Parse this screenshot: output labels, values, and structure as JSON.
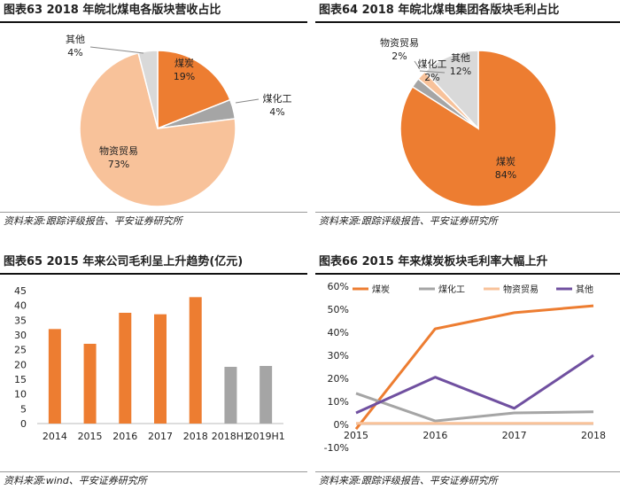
{
  "chart_data": [
    {
      "id": "fig63",
      "type": "pie",
      "title": "图表63   2018 年皖北煤电各版块营收占比",
      "source": "资料来源:跟踪评级报告、平安证券研究所",
      "labels": [
        "煤炭",
        "煤化工",
        "物资贸易",
        "其他"
      ],
      "values": [
        19,
        4,
        73,
        4
      ],
      "value_labels": [
        "19%",
        "4%",
        "73%",
        "4%"
      ],
      "colors": [
        "#ED7D31",
        "#A5A5A5",
        "#F8C29A",
        "#D9D9D9"
      ]
    },
    {
      "id": "fig64",
      "type": "pie",
      "title": "图表64   2018 年皖北煤电集团各版块毛利占比",
      "source": "资料来源:跟踪评级报告、平安证券研究所",
      "labels": [
        "煤炭",
        "煤化工",
        "物资贸易",
        "其他"
      ],
      "values": [
        84,
        2,
        2,
        12
      ],
      "value_labels": [
        "84%",
        "2%",
        "2%",
        "12%"
      ],
      "colors": [
        "#ED7D31",
        "#A5A5A5",
        "#F8C29A",
        "#D9D9D9"
      ]
    },
    {
      "id": "fig65",
      "type": "bar",
      "title": "图表65   2015 年来公司毛利呈上升趋势(亿元)",
      "source": "资料来源:wind、平安证券研究所",
      "categories": [
        "2014",
        "2015",
        "2016",
        "2017",
        "2018",
        "2018H1",
        "2019H1"
      ],
      "values": [
        32,
        27,
        37.5,
        37,
        42.8,
        19.2,
        19.5
      ],
      "colors": [
        "#ED7D31",
        "#ED7D31",
        "#ED7D31",
        "#ED7D31",
        "#ED7D31",
        "#A5A5A5",
        "#A5A5A5"
      ],
      "ylim": [
        0,
        45
      ],
      "yticks": [
        "0",
        "5",
        "10",
        "15",
        "20",
        "25",
        "30",
        "35",
        "40",
        "45"
      ],
      "ytick_values": [
        0,
        5,
        10,
        15,
        20,
        25,
        30,
        35,
        40,
        45
      ]
    },
    {
      "id": "fig66",
      "type": "line",
      "title": "图表66   2015 年来煤炭板块毛利率大幅上升",
      "source": "资料来源:跟踪评级报告、平安证券研究所",
      "x": [
        "2015",
        "2016",
        "2017",
        "2018"
      ],
      "series": [
        {
          "name": "煤炭",
          "color": "#ED7D31",
          "values": [
            -2,
            41.5,
            48.5,
            51.5
          ]
        },
        {
          "name": "煤化工",
          "color": "#A5A5A5",
          "values": [
            13.5,
            1.5,
            5,
            5.5
          ]
        },
        {
          "name": "物资贸易",
          "color": "#F8C29A",
          "values": [
            0.5,
            0.5,
            0.5,
            0.5
          ]
        },
        {
          "name": "其他",
          "color": "#7050A0",
          "values": [
            5,
            20.5,
            7,
            30
          ]
        }
      ],
      "ylim": [
        -10,
        60
      ],
      "yticks": [
        "-10%",
        "0%",
        "10%",
        "20%",
        "30%",
        "40%",
        "50%",
        "60%"
      ],
      "ytick_values": [
        -10,
        0,
        10,
        20,
        30,
        40,
        50,
        60
      ]
    }
  ]
}
